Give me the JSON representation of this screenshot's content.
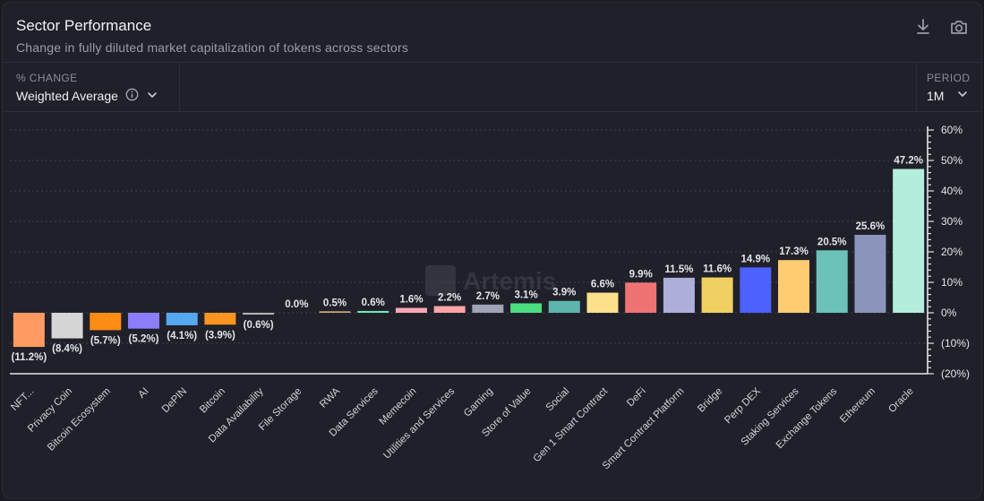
{
  "header": {
    "title": "Sector Performance",
    "subtitle": "Change in fully diluted market capitalization of tokens across sectors",
    "icons": [
      "download-icon",
      "camera-icon"
    ]
  },
  "controls": {
    "metric_label": "% CHANGE",
    "metric_value": "Weighted Average",
    "period_label": "PERIOD",
    "period_value": "1M"
  },
  "watermark": "Artemis",
  "chart_data": {
    "type": "bar",
    "title": "Sector Performance",
    "categories": [
      "NFT...",
      "Privacy Coin",
      "Bitcoin Ecosystem",
      "AI",
      "DePIN",
      "Bitcoin",
      "Data Availability",
      "File Storage",
      "RWA",
      "Data Services",
      "Memecoin",
      "Utilities and Services",
      "Gaming",
      "Store of Value",
      "Social",
      "Gen 1 Smart Contract",
      "DeFi",
      "Smart Contract Platform",
      "Bridge",
      "Perp DEX",
      "Staking Services",
      "Exchange Tokens",
      "Ethereum",
      "Oracle"
    ],
    "values": [
      -11.2,
      -8.4,
      -5.7,
      -5.2,
      -4.1,
      -3.9,
      -0.6,
      0.0,
      0.5,
      0.6,
      1.6,
      2.2,
      2.7,
      3.1,
      3.9,
      6.6,
      9.9,
      11.5,
      11.6,
      14.9,
      17.3,
      20.5,
      25.6,
      47.2
    ],
    "data_labels": [
      "(11.2%)",
      "(8.4%)",
      "(5.7%)",
      "(5.2%)",
      "(4.1%)",
      "(3.9%)",
      "(0.6%)",
      "0.0%",
      "0.5%",
      "0.6%",
      "1.6%",
      "2.2%",
      "2.7%",
      "3.1%",
      "3.9%",
      "6.6%",
      "9.9%",
      "11.5%",
      "11.6%",
      "14.9%",
      "17.3%",
      "20.5%",
      "25.6%",
      "47.2%"
    ],
    "colors": [
      "#ff9a62",
      "#d6d6d6",
      "#ff8c14",
      "#8c7dfc",
      "#55a8f0",
      "#fb9420",
      "#b3b3b3",
      "#9ea0ad",
      "#c9a87c",
      "#6ee7b7",
      "#f9a8b4",
      "#fca5a5",
      "#9fa3b5",
      "#4ade80",
      "#5eb5ad",
      "#fde08b",
      "#ef7373",
      "#aeaedb",
      "#f0d060",
      "#4b62ff",
      "#ffcc73",
      "#6cc2b8",
      "#8b94bb",
      "#b2eedb"
    ],
    "y_ticks": [
      60,
      50,
      40,
      30,
      20,
      10,
      0,
      -10,
      -20
    ],
    "y_tick_labels": [
      "60%",
      "50%",
      "40%",
      "30%",
      "20%",
      "10%",
      "0%",
      "(10%)",
      "(20%)"
    ],
    "ylim": [
      -20,
      60
    ],
    "grid": true,
    "legend": "none"
  }
}
